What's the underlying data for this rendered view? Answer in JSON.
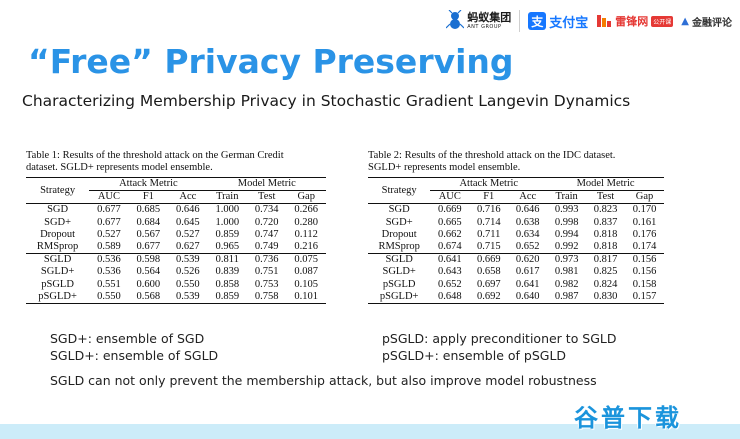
{
  "logos": {
    "ant_cn": "蚂蚁集团",
    "ant_en": "ANT GROUP",
    "alipay_mark": "支",
    "alipay_text": "支付宝",
    "leifeng_text": "雷锋网",
    "leifeng_badge": "公开课",
    "jinrong_text": "金融评论"
  },
  "title": "“Free”  Privacy Preserving",
  "subtitle": "Characterizing Membership Privacy in Stochastic Gradient Langevin Dynamics",
  "table1": {
    "caption_line1": "Table 1: Results of the threshold attack on the German Credit",
    "caption_line2": "dataset. SGLD+ represents model ensemble.",
    "header": {
      "strategy": "Strategy",
      "attack_metric": "Attack Metric",
      "model_metric": "Model Metric",
      "cols": [
        "AUC",
        "F1",
        "Acc",
        "Train",
        "Test",
        "Gap"
      ]
    },
    "rows": [
      [
        "SGD",
        "0.677",
        "0.685",
        "0.646",
        "1.000",
        "0.734",
        "0.266"
      ],
      [
        "SGD+",
        "0.677",
        "0.684",
        "0.645",
        "1.000",
        "0.720",
        "0.280"
      ],
      [
        "Dropout",
        "0.527",
        "0.567",
        "0.527",
        "0.859",
        "0.747",
        "0.112"
      ],
      [
        "RMSprop",
        "0.589",
        "0.677",
        "0.627",
        "0.965",
        "0.749",
        "0.216"
      ],
      [
        "SGLD",
        "0.536",
        "0.598",
        "0.539",
        "0.811",
        "0.736",
        "0.075"
      ],
      [
        "SGLD+",
        "0.536",
        "0.564",
        "0.526",
        "0.839",
        "0.751",
        "0.087"
      ],
      [
        "pSGLD",
        "0.551",
        "0.600",
        "0.550",
        "0.858",
        "0.753",
        "0.105"
      ],
      [
        "pSGLD+",
        "0.550",
        "0.568",
        "0.539",
        "0.859",
        "0.758",
        "0.101"
      ]
    ]
  },
  "table2": {
    "caption_line1": "Table 2: Results of the threshold attack on the IDC dataset.",
    "caption_line2": "SGLD+ represents model ensemble.",
    "header": {
      "strategy": "Strategy",
      "attack_metric": "Attack Metric",
      "model_metric": "Model Metric",
      "cols": [
        "AUC",
        "F1",
        "Acc",
        "Train",
        "Test",
        "Gap"
      ]
    },
    "rows": [
      [
        "SGD",
        "0.669",
        "0.716",
        "0.646",
        "0.993",
        "0.823",
        "0.170"
      ],
      [
        "SGD+",
        "0.665",
        "0.714",
        "0.638",
        "0.998",
        "0.837",
        "0.161"
      ],
      [
        "Dropout",
        "0.662",
        "0.711",
        "0.634",
        "0.994",
        "0.818",
        "0.176"
      ],
      [
        "RMSprop",
        "0.674",
        "0.715",
        "0.652",
        "0.992",
        "0.818",
        "0.174"
      ],
      [
        "SGLD",
        "0.641",
        "0.669",
        "0.620",
        "0.973",
        "0.817",
        "0.156"
      ],
      [
        "SGLD+",
        "0.643",
        "0.658",
        "0.617",
        "0.981",
        "0.825",
        "0.156"
      ],
      [
        "pSGLD",
        "0.652",
        "0.697",
        "0.641",
        "0.982",
        "0.824",
        "0.158"
      ],
      [
        "pSGLD+",
        "0.648",
        "0.692",
        "0.640",
        "0.987",
        "0.830",
        "0.157"
      ]
    ]
  },
  "notes": {
    "left_1": "SGD+: ensemble of SGD",
    "left_2": "SGLD+: ensemble of SGLD",
    "right_1": "pSGLD: apply preconditioner to SGLD",
    "right_2": "pSGLD+: ensemble of pSGLD",
    "conclusion": "SGLD can not only prevent the membership attack, but also improve model robustness"
  },
  "watermark": "谷普下载",
  "colors": {
    "title": "#2a93e6",
    "alipay": "#1677ff",
    "leifeng": "#e53935",
    "band": "#ccecf9",
    "watermark": "#1b94dc"
  }
}
